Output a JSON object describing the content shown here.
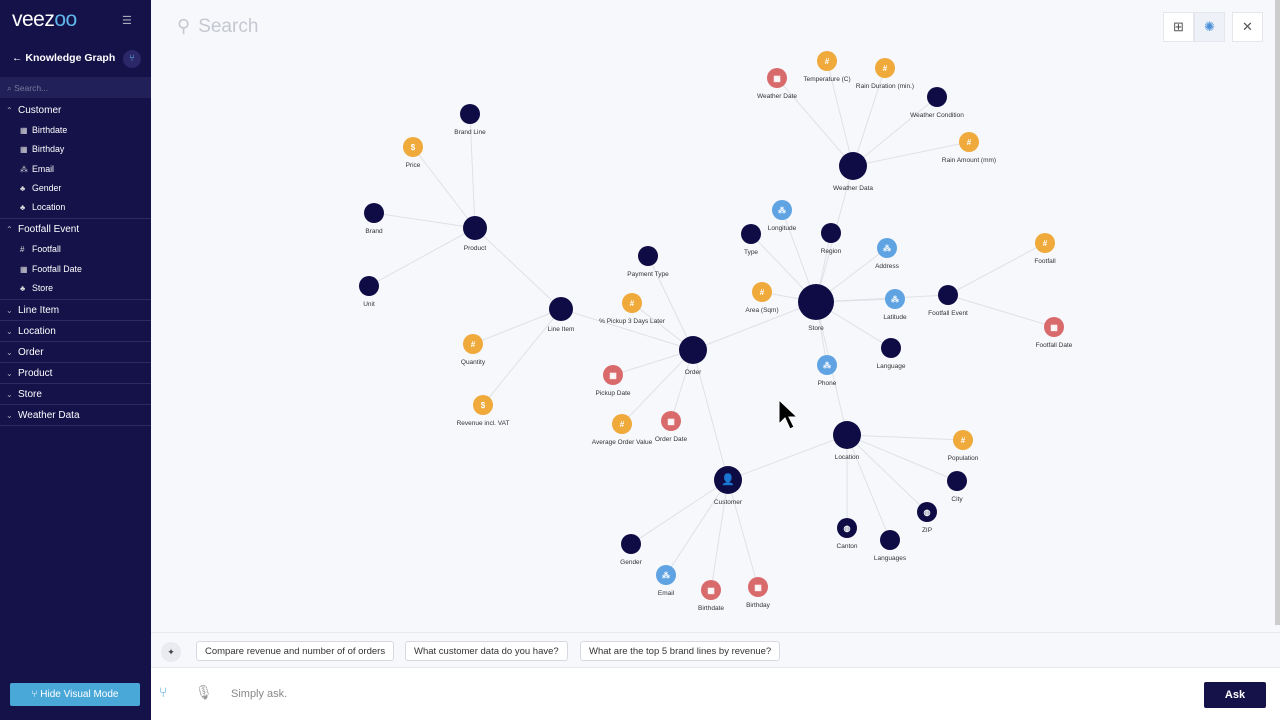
{
  "sidebar": {
    "logo_main": "veez",
    "logo_accent": "oo",
    "back_title": "Knowledge Graph",
    "search_placeholder": "Search...",
    "groups": [
      {
        "label": "Customer",
        "expanded": true,
        "items": [
          {
            "label": "Birthdate",
            "icon": "calendar-icon"
          },
          {
            "label": "Birthday",
            "icon": "calendar-icon"
          },
          {
            "label": "Email",
            "icon": "geo-icon"
          },
          {
            "label": "Gender",
            "icon": "category-icon"
          },
          {
            "label": "Location",
            "icon": "category-icon"
          }
        ]
      },
      {
        "label": "Footfall Event",
        "expanded": true,
        "items": [
          {
            "label": "Footfall",
            "icon": "hash-icon"
          },
          {
            "label": "Footfall Date",
            "icon": "calendar-icon"
          },
          {
            "label": "Store",
            "icon": "category-icon"
          }
        ]
      },
      {
        "label": "Line Item",
        "items": []
      },
      {
        "label": "Location",
        "items": []
      },
      {
        "label": "Order",
        "items": []
      },
      {
        "label": "Product",
        "items": []
      },
      {
        "label": "Store",
        "items": []
      },
      {
        "label": "Weather Data",
        "items": []
      }
    ],
    "hide_visual_mode": "Hide Visual Mode"
  },
  "search": {
    "placeholder": "Search"
  },
  "colors": {
    "entity": "#0f0c45",
    "number": "#f0a93b",
    "date": "#d96a6c",
    "geo": "#5fa3e2",
    "accent": "#4aa8d8"
  },
  "graph": {
    "nodes": [
      {
        "id": "product",
        "label": "Product",
        "kind": "entity",
        "size": "l"
      },
      {
        "id": "lineitem",
        "label": "Line Item",
        "kind": "entity",
        "size": "l"
      },
      {
        "id": "order",
        "label": "Order",
        "kind": "entity",
        "size": "xl"
      },
      {
        "id": "store",
        "label": "Store",
        "kind": "entity",
        "size": "xxl"
      },
      {
        "id": "weather",
        "label": "Weather Data",
        "kind": "entity",
        "size": "xl"
      },
      {
        "id": "location",
        "label": "Location",
        "kind": "entity",
        "size": "xl"
      },
      {
        "id": "customer",
        "label": "Customer",
        "kind": "person",
        "size": "xl"
      },
      {
        "id": "footfallevent",
        "label": "Footfall Event",
        "kind": "entity",
        "size": "m"
      },
      {
        "id": "brandline",
        "label": "Brand Line",
        "kind": "entity",
        "size": "m"
      },
      {
        "id": "brand",
        "label": "Brand",
        "kind": "entity",
        "size": "m"
      },
      {
        "id": "unit",
        "label": "Unit",
        "kind": "entity",
        "size": "m"
      },
      {
        "id": "paytype",
        "label": "Payment Type",
        "kind": "entity",
        "size": "m"
      },
      {
        "id": "type",
        "label": "Type",
        "kind": "entity",
        "size": "m"
      },
      {
        "id": "region",
        "label": "Region",
        "kind": "entity",
        "size": "m"
      },
      {
        "id": "wcond",
        "label": "Weather Condition",
        "kind": "entity",
        "size": "m"
      },
      {
        "id": "language",
        "label": "Language",
        "kind": "entity",
        "size": "m"
      },
      {
        "id": "city",
        "label": "City",
        "kind": "entity",
        "size": "m"
      },
      {
        "id": "languages",
        "label": "Languages",
        "kind": "entity",
        "size": "m"
      },
      {
        "id": "gender",
        "label": "Gender",
        "kind": "entity",
        "size": "m"
      },
      {
        "id": "zip",
        "label": "ZIP",
        "kind": "globe",
        "size": "m"
      },
      {
        "id": "canton",
        "label": "Canton",
        "kind": "globe",
        "size": "m"
      },
      {
        "id": "temp",
        "label": "Temperature (C)",
        "kind": "number",
        "size": "m"
      },
      {
        "id": "raindur",
        "label": "Rain Duration (min.)",
        "kind": "number",
        "size": "m"
      },
      {
        "id": "rainamt",
        "label": "Rain Amount (mm)",
        "kind": "number",
        "size": "m"
      },
      {
        "id": "area",
        "label": "Area (Sqm)",
        "kind": "number",
        "size": "m"
      },
      {
        "id": "pickup3",
        "label": "% Pickup 3 Days Later",
        "kind": "number",
        "size": "m"
      },
      {
        "id": "aov",
        "label": "Average Order Value",
        "kind": "number",
        "size": "m"
      },
      {
        "id": "footfall",
        "label": "Footfall",
        "kind": "number",
        "size": "m"
      },
      {
        "id": "population",
        "label": "Population",
        "kind": "number",
        "size": "m"
      },
      {
        "id": "quantity",
        "label": "Quantity",
        "kind": "number",
        "size": "m"
      },
      {
        "id": "price",
        "label": "Price",
        "kind": "money",
        "size": "m"
      },
      {
        "id": "revenue",
        "label": "Revenue incl. VAT",
        "kind": "money",
        "size": "m"
      },
      {
        "id": "wdate",
        "label": "Weather Date",
        "kind": "date",
        "size": "m"
      },
      {
        "id": "pickupdate",
        "label": "Pickup Date",
        "kind": "date",
        "size": "m"
      },
      {
        "id": "orderdate",
        "label": "Order Date",
        "kind": "date",
        "size": "m"
      },
      {
        "id": "ffdate",
        "label": "Footfall Date",
        "kind": "date",
        "size": "m"
      },
      {
        "id": "birthdate",
        "label": "Birthdate",
        "kind": "date",
        "size": "m"
      },
      {
        "id": "birthday",
        "label": "Birthday",
        "kind": "date",
        "size": "m"
      },
      {
        "id": "longitude",
        "label": "Longitude",
        "kind": "geo",
        "size": "m"
      },
      {
        "id": "address",
        "label": "Address",
        "kind": "geo",
        "size": "m"
      },
      {
        "id": "latitude",
        "label": "Latitude",
        "kind": "geo",
        "size": "m"
      },
      {
        "id": "phone",
        "label": "Phone",
        "kind": "geo",
        "size": "m"
      },
      {
        "id": "email",
        "label": "Email",
        "kind": "geo",
        "size": "m"
      }
    ],
    "edges": [
      [
        "product",
        "brandline"
      ],
      [
        "product",
        "price"
      ],
      [
        "product",
        "brand"
      ],
      [
        "product",
        "unit"
      ],
      [
        "product",
        "lineitem"
      ],
      [
        "lineitem",
        "quantity"
      ],
      [
        "lineitem",
        "revenue"
      ],
      [
        "lineitem",
        "order"
      ],
      [
        "order",
        "paytype"
      ],
      [
        "order",
        "pickup3"
      ],
      [
        "order",
        "pickupdate"
      ],
      [
        "order",
        "aov"
      ],
      [
        "order",
        "orderdate"
      ],
      [
        "order",
        "customer"
      ],
      [
        "order",
        "store"
      ],
      [
        "store",
        "type"
      ],
      [
        "store",
        "longitude"
      ],
      [
        "store",
        "region"
      ],
      [
        "store",
        "address"
      ],
      [
        "store",
        "area"
      ],
      [
        "store",
        "latitude"
      ],
      [
        "store",
        "footfallevent"
      ],
      [
        "store",
        "language"
      ],
      [
        "store",
        "phone"
      ],
      [
        "store",
        "weather"
      ],
      [
        "store",
        "location"
      ],
      [
        "weather",
        "wdate"
      ],
      [
        "weather",
        "temp"
      ],
      [
        "weather",
        "raindur"
      ],
      [
        "weather",
        "wcond"
      ],
      [
        "weather",
        "rainamt"
      ],
      [
        "footfallevent",
        "footfall"
      ],
      [
        "footfallevent",
        "ffdate"
      ],
      [
        "location",
        "population"
      ],
      [
        "location",
        "city"
      ],
      [
        "location",
        "zip"
      ],
      [
        "location",
        "languages"
      ],
      [
        "location",
        "canton"
      ],
      [
        "location",
        "customer"
      ],
      [
        "customer",
        "gender"
      ],
      [
        "customer",
        "email"
      ],
      [
        "customer",
        "birthdate"
      ],
      [
        "customer",
        "birthday"
      ]
    ]
  },
  "suggestions": [
    "Compare revenue and number of of orders",
    "What customer data do you have?",
    "What are the top 5 brand lines by revenue?"
  ],
  "ask": {
    "placeholder": "Simply ask.",
    "button": "Ask"
  }
}
